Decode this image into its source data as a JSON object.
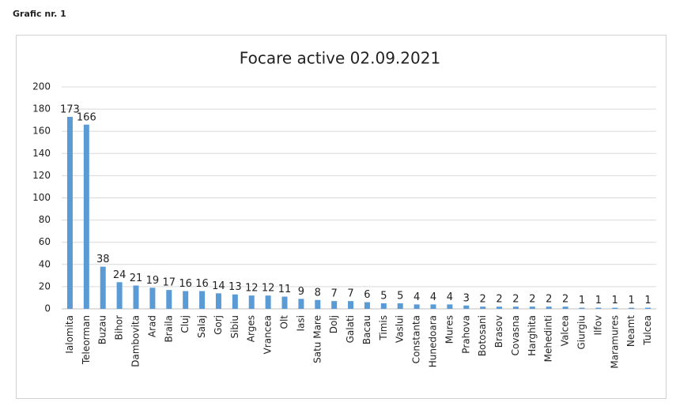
{
  "heading": "Grafic nr. 1",
  "chart_data": {
    "type": "bar",
    "title": "Focare active 02.09.2021",
    "categories": [
      "Ialomita",
      "Teleorman",
      "Buzau",
      "Bihor",
      "Dambovita",
      "Arad",
      "Braila",
      "Cluj",
      "Salaj",
      "Gorj",
      "Sibiu",
      "Arges",
      "Vrancea",
      "Olt",
      "Iasi",
      "Satu Mare",
      "Dolj",
      "Galati",
      "Bacau",
      "Timis",
      "Vaslui",
      "Constanta",
      "Hunedoara",
      "Mures",
      "Prahova",
      "Botosani",
      "Brasov",
      "Covasna",
      "Harghita",
      "Mehedinti",
      "Valcea",
      "Giurgiu",
      "Ilfov",
      "Maramures",
      "Neamt",
      "Tulcea"
    ],
    "values": [
      173,
      166,
      38,
      24,
      21,
      19,
      17,
      16,
      16,
      14,
      13,
      12,
      12,
      11,
      9,
      8,
      7,
      7,
      6,
      5,
      5,
      4,
      4,
      4,
      3,
      2,
      2,
      2,
      2,
      2,
      2,
      1,
      1,
      1,
      1,
      1
    ],
    "color": "#5b9bd5",
    "ylim": [
      0,
      200
    ],
    "yticks": [
      0,
      20,
      40,
      60,
      80,
      100,
      120,
      140,
      160,
      180,
      200
    ],
    "grid": true
  }
}
